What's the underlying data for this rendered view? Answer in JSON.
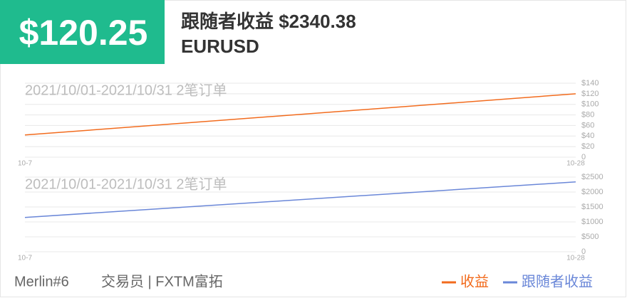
{
  "header": {
    "amount": "$120.25",
    "title": "跟随者收益 $2340.38",
    "symbol": "EURUSD"
  },
  "footer": {
    "trader": "Merlin#6",
    "role": "交易员 | FXTM富拓"
  },
  "chart_data": [
    {
      "type": "line",
      "annotation": "2021/10/01-2021/10/31 2笔订单",
      "categories": [
        "10-7",
        "10-28"
      ],
      "series": [
        {
          "name": "收益",
          "color": "#f26b1d",
          "values": [
            42,
            120
          ]
        }
      ],
      "ylim": [
        0,
        140
      ],
      "yticks": [
        0,
        {
          "value": 20,
          "label": "$20"
        },
        {
          "value": 40,
          "label": "$40"
        },
        {
          "value": 60,
          "label": "$60"
        },
        {
          "value": 80,
          "label": "$80"
        },
        {
          "value": 100,
          "label": "$100"
        },
        {
          "value": 120,
          "label": "$120"
        },
        {
          "value": 140,
          "label": "$140"
        }
      ],
      "grid": true
    },
    {
      "type": "line",
      "annotation": "2021/10/01-2021/10/31 2笔订单",
      "categories": [
        "10-7",
        "10-28"
      ],
      "series": [
        {
          "name": "跟随者收益",
          "color": "#6a87d8",
          "values": [
            1150,
            2340
          ]
        }
      ],
      "ylim": [
        0,
        2500
      ],
      "yticks": [
        0,
        {
          "value": 500,
          "label": "$500"
        },
        {
          "value": 1000,
          "label": "$1000"
        },
        {
          "value": 1500,
          "label": "$1500"
        },
        {
          "value": 2000,
          "label": "$2000"
        },
        {
          "value": 2500,
          "label": "$2500"
        }
      ],
      "grid": true
    }
  ]
}
